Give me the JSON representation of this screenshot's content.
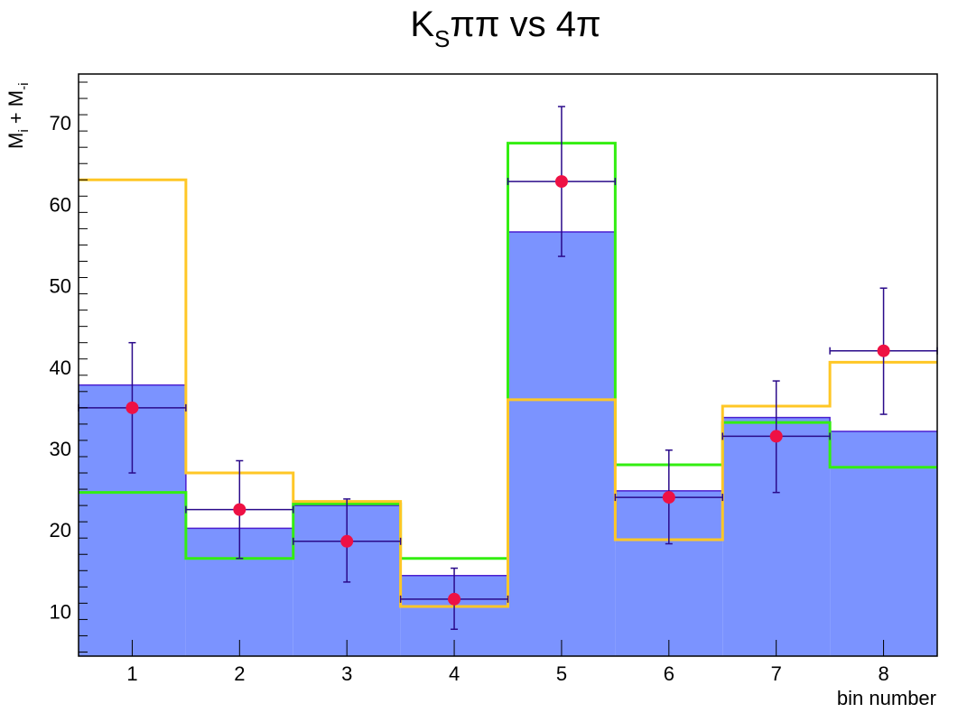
{
  "chart_data": {
    "type": "bar",
    "title": "K",
    "title_subscript": "S",
    "title_rest": "ππ vs 4π",
    "ylabel": "M",
    "ylabel_sub1": "i",
    "ylabel_plus": " + M",
    "ylabel_sub2": "-i",
    "xlabel": "bin number",
    "xlim": [
      0.5,
      8.5
    ],
    "ylim": [
      4.5,
      76
    ],
    "yticks": [
      10,
      20,
      30,
      40,
      50,
      60,
      70
    ],
    "categories": [
      "1",
      "2",
      "3",
      "4",
      "5",
      "6",
      "7",
      "8"
    ],
    "colors": {
      "filled": "#7b93ff",
      "filled_edge": "#4b1fd0",
      "green": "#33ee11",
      "orange": "#ffc726",
      "points": "#ee1144",
      "errors": "#2a0a8a"
    },
    "series": [
      {
        "values": [
          37.8,
          20.2,
          23.0,
          14.4,
          56.6,
          24.8,
          33.8,
          32.1
        ]
      },
      {
        "values": [
          24.6,
          16.5,
          23.2,
          16.5,
          67.5,
          28.0,
          33.2,
          27.7
        ]
      },
      {
        "values": [
          63.0,
          27.0,
          23.5,
          10.6,
          36.0,
          18.8,
          35.2,
          40.6
        ]
      },
      {
        "values": [
          35.0,
          22.5,
          18.6,
          11.5,
          62.8,
          24.0,
          31.5,
          42.0
        ],
        "err_low": [
          8.0,
          6.0,
          5.0,
          3.7,
          9.2,
          5.7,
          6.9,
          7.8
        ],
        "err_high": [
          8.0,
          6.0,
          5.2,
          3.8,
          9.2,
          5.8,
          6.8,
          7.7
        ]
      }
    ]
  }
}
